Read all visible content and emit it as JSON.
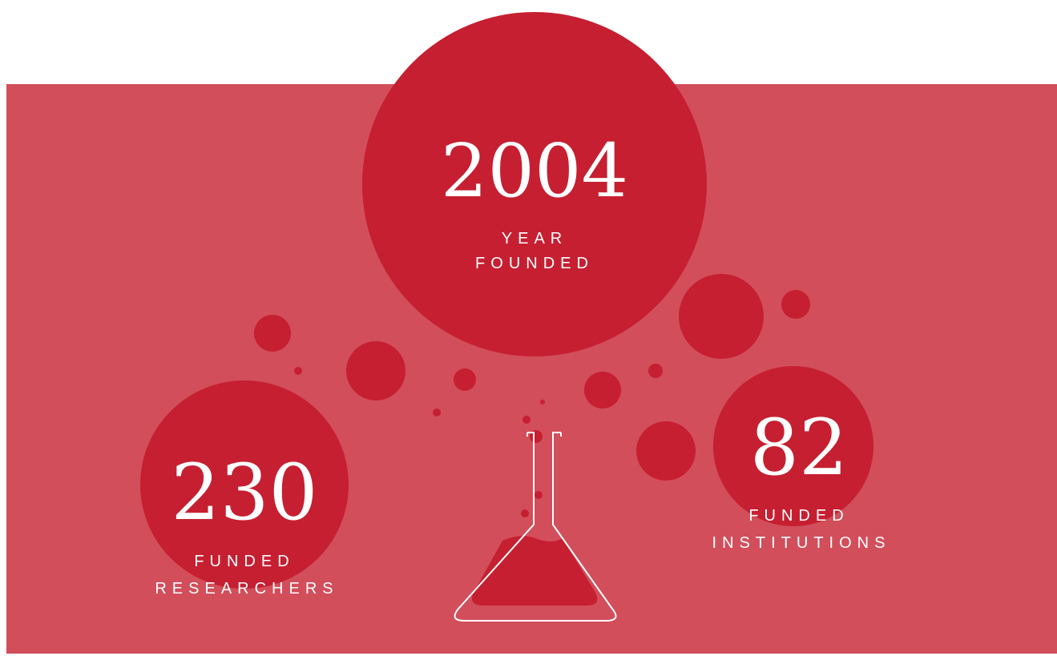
{
  "stats": [
    {
      "number": "2004",
      "label": [
        "YEAR",
        "FOUNDED"
      ]
    },
    {
      "number": "230",
      "label": [
        "FUNDED",
        "RESEARCHERS"
      ]
    },
    {
      "number": "82",
      "label": [
        "FUNDED",
        "INSTITUTIONS"
      ]
    }
  ]
}
